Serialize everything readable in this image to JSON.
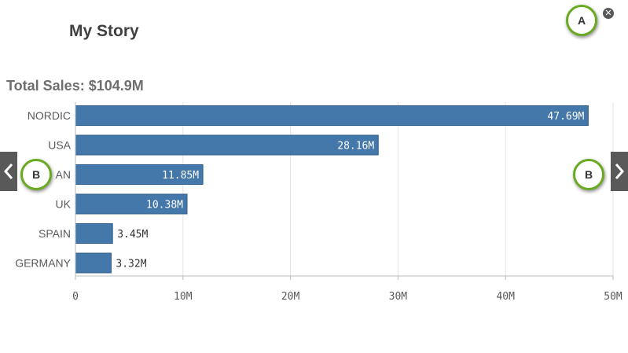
{
  "story": {
    "title": "My Story"
  },
  "controls": {
    "close_icon": "close-circle-icon",
    "prev_icon": "chevron-left-icon",
    "next_icon": "chevron-right-icon"
  },
  "callouts": {
    "a": "A",
    "b_left": "B",
    "b_right": "B"
  },
  "colors": {
    "bar": "#4477aa",
    "callout_ring": "#6aaa22",
    "nav_bg": "#595959"
  },
  "chart_data": {
    "type": "bar",
    "orientation": "horizontal",
    "title": "Total Sales: $104.9M",
    "categories": [
      "NORDIC",
      "USA",
      "JAPAN",
      "UK",
      "SPAIN",
      "GERMANY"
    ],
    "visible_category_labels": [
      "NORDIC",
      "USA",
      "AN",
      "UK",
      "SPAIN",
      "GERMANY"
    ],
    "values": [
      47.69,
      28.16,
      11.85,
      10.38,
      3.45,
      3.32
    ],
    "value_labels": [
      "47.69M",
      "28.16M",
      "11.85M",
      "10.38M",
      "3.45M",
      "3.32M"
    ],
    "xlim": [
      0,
      50
    ],
    "ticks": [
      0,
      10,
      20,
      30,
      40,
      50
    ],
    "tick_labels": [
      "0",
      "10M",
      "20M",
      "30M",
      "40M",
      "50M"
    ],
    "grid": true,
    "xlabel": "",
    "ylabel": ""
  }
}
